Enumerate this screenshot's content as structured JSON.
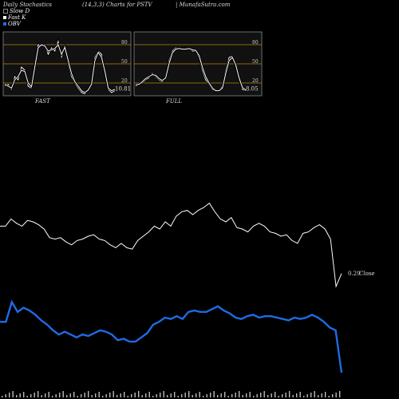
{
  "header": {
    "left": "Daily Stochastics",
    "mid": "(14,3,3) Charts for PSTV",
    "right": "| MunafaSutra.com"
  },
  "legend": [
    {
      "label": "Slow D",
      "color": "#000000"
    },
    {
      "label": "Fast K",
      "color": "#ffffff"
    },
    {
      "label": "OBV",
      "color": "#1e6be6"
    }
  ],
  "colors": {
    "level_line": "#b8860b",
    "panel_bg": "#111111",
    "obv": "#1e6be6",
    "price": "#ffffff"
  },
  "chart_data": [
    {
      "type": "line",
      "title": "FAST",
      "ylim": [
        0,
        100
      ],
      "levels": [
        20,
        50,
        80
      ],
      "level_labels": [
        "20",
        "50",
        "80"
      ],
      "last_value_label": "10.81",
      "series": [
        {
          "values": [
            15,
            18,
            10,
            30,
            25,
            45,
            40,
            15,
            12,
            50,
            80,
            78,
            80,
            65,
            75,
            70,
            85,
            60,
            80,
            50,
            30,
            20,
            12,
            5,
            3,
            10,
            20,
            60,
            70,
            65,
            35,
            10,
            5,
            8
          ]
        },
        {
          "values": [
            18,
            15,
            12,
            25,
            30,
            40,
            38,
            20,
            14,
            45,
            75,
            80,
            78,
            70,
            72,
            74,
            80,
            65,
            76,
            55,
            35,
            22,
            15,
            8,
            5,
            9,
            18,
            55,
            68,
            60,
            38,
            12,
            8,
            10
          ]
        }
      ]
    },
    {
      "type": "line",
      "title": "FULL",
      "ylim": [
        0,
        100
      ],
      "levels": [
        20,
        50,
        80
      ],
      "level_labels": [
        "20",
        "50",
        "80"
      ],
      "last_value_label": "8.05",
      "series": [
        {
          "values": [
            15,
            18,
            20,
            25,
            28,
            35,
            30,
            25,
            22,
            30,
            55,
            70,
            75,
            73,
            74,
            72,
            75,
            70,
            70,
            60,
            40,
            25,
            18,
            10,
            7,
            8,
            15,
            40,
            60,
            62,
            45,
            25,
            10,
            8
          ]
        },
        {
          "values": [
            17,
            18,
            22,
            27,
            30,
            33,
            32,
            27,
            24,
            28,
            50,
            67,
            73,
            74,
            73,
            73,
            74,
            72,
            71,
            63,
            45,
            30,
            20,
            12,
            8,
            8,
            12,
            35,
            55,
            60,
            48,
            28,
            13,
            9
          ]
        }
      ]
    },
    {
      "type": "line",
      "title": "",
      "last_value_label": "0.29",
      "annotation": "Close",
      "series": [
        {
          "name": "Close",
          "color": "#ffffff",
          "values": [
            0.62,
            0.62,
            0.67,
            0.64,
            0.62,
            0.66,
            0.65,
            0.63,
            0.6,
            0.54,
            0.53,
            0.54,
            0.51,
            0.49,
            0.52,
            0.53,
            0.55,
            0.56,
            0.53,
            0.52,
            0.49,
            0.47,
            0.5,
            0.47,
            0.46,
            0.52,
            0.55,
            0.58,
            0.62,
            0.6,
            0.65,
            0.62,
            0.69,
            0.72,
            0.73,
            0.7,
            0.73,
            0.75,
            0.78,
            0.72,
            0.67,
            0.65,
            0.68,
            0.61,
            0.6,
            0.58,
            0.62,
            0.64,
            0.62,
            0.58,
            0.57,
            0.55,
            0.56,
            0.52,
            0.5,
            0.57,
            0.58,
            0.61,
            0.63,
            0.6,
            0.53,
            0.2,
            0.29
          ]
        }
      ]
    },
    {
      "type": "line",
      "title": "",
      "series": [
        {
          "name": "OBV",
          "color": "#1e6be6",
          "values": [
            0.36,
            0.36,
            0.5,
            0.43,
            0.46,
            0.44,
            0.41,
            0.37,
            0.34,
            0.3,
            0.27,
            0.29,
            0.27,
            0.25,
            0.27,
            0.26,
            0.28,
            0.3,
            0.29,
            0.27,
            0.23,
            0.24,
            0.22,
            0.22,
            0.25,
            0.28,
            0.34,
            0.36,
            0.39,
            0.38,
            0.4,
            0.38,
            0.43,
            0.44,
            0.43,
            0.43,
            0.45,
            0.47,
            0.44,
            0.42,
            0.39,
            0.38,
            0.4,
            0.41,
            0.39,
            0.4,
            0.4,
            0.39,
            0.38,
            0.37,
            0.39,
            0.38,
            0.39,
            0.41,
            0.39,
            0.36,
            0.32,
            0.3,
            0.0
          ]
        }
      ]
    }
  ]
}
